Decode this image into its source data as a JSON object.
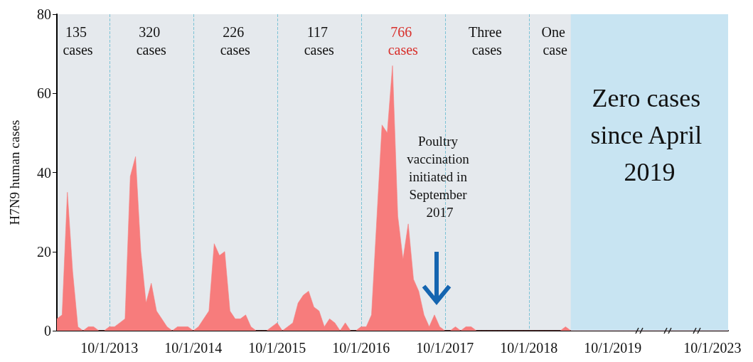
{
  "chart_data": {
    "type": "area",
    "ylabel": "H7N9 human cases",
    "categories": [
      null,
      null,
      null,
      null,
      null,
      null,
      null,
      null,
      null,
      null,
      "10/1/2013",
      null,
      null,
      null,
      null,
      null,
      null,
      null,
      null,
      null,
      null,
      null,
      null,
      null,
      null,
      null,
      "10/1/2014",
      null,
      null,
      null,
      null,
      null,
      null,
      null,
      null,
      null,
      null,
      null,
      null,
      null,
      null,
      null,
      "10/1/2015",
      null,
      null,
      null,
      null,
      null,
      null,
      null,
      null,
      null,
      null,
      null,
      null,
      null,
      null,
      null,
      "10/1/2016",
      null,
      null,
      null,
      null,
      null,
      null,
      null,
      null,
      null,
      null,
      null,
      null,
      null,
      null,
      null,
      "10/1/2017",
      null,
      null,
      null,
      null,
      null,
      null,
      null,
      null,
      null,
      null,
      null,
      null,
      null,
      null,
      null,
      "10/1/2018",
      null,
      null,
      null,
      null,
      null,
      null,
      null,
      null,
      null,
      null,
      null,
      null,
      null,
      null,
      null,
      "10/1/2019",
      null,
      null,
      null,
      null,
      null,
      null,
      null,
      null,
      null,
      null,
      null,
      null,
      null,
      null,
      null,
      null,
      null,
      null,
      "10/1/2023",
      null,
      null,
      null
    ],
    "values": [
      3,
      4,
      35,
      15,
      1,
      0,
      1,
      1,
      0,
      0,
      1,
      1,
      2,
      3,
      39,
      44,
      20,
      7,
      12,
      5,
      3,
      1,
      0,
      1,
      1,
      1,
      0,
      1,
      3,
      5,
      22,
      19,
      20,
      5,
      3,
      3,
      4,
      1,
      0,
      0,
      0,
      1,
      2,
      0,
      1,
      2,
      7,
      9,
      10,
      6,
      5,
      1,
      3,
      2,
      0,
      2,
      0,
      0,
      1,
      1,
      4,
      28,
      52,
      50,
      67,
      29,
      18,
      27,
      13,
      10,
      4,
      1,
      4,
      1,
      0,
      0,
      1,
      0,
      1,
      1,
      0,
      0,
      0,
      0,
      0,
      0,
      0,
      0,
      0,
      0,
      0,
      0,
      0,
      0,
      0,
      0,
      0,
      1,
      0,
      0,
      0,
      0,
      0,
      0,
      0,
      0,
      0,
      0,
      0,
      0,
      0,
      0,
      0,
      0,
      0,
      0,
      0,
      0,
      0,
      0,
      0,
      0,
      0,
      0,
      0,
      0,
      0,
      0,
      0
    ],
    "color": "#f77c7c",
    "ylim": [
      0,
      80
    ],
    "yticks": [
      0,
      20,
      40,
      60,
      80
    ],
    "grid": "x",
    "marker": "none",
    "annotations": [
      "135 cases",
      "320 cases",
      "226 cases",
      "117 cases",
      "766 cases",
      "Three cases",
      "One case",
      "Poultry vaccination initiated in September 2017",
      "Zero cases since April 2019"
    ]
  }
}
